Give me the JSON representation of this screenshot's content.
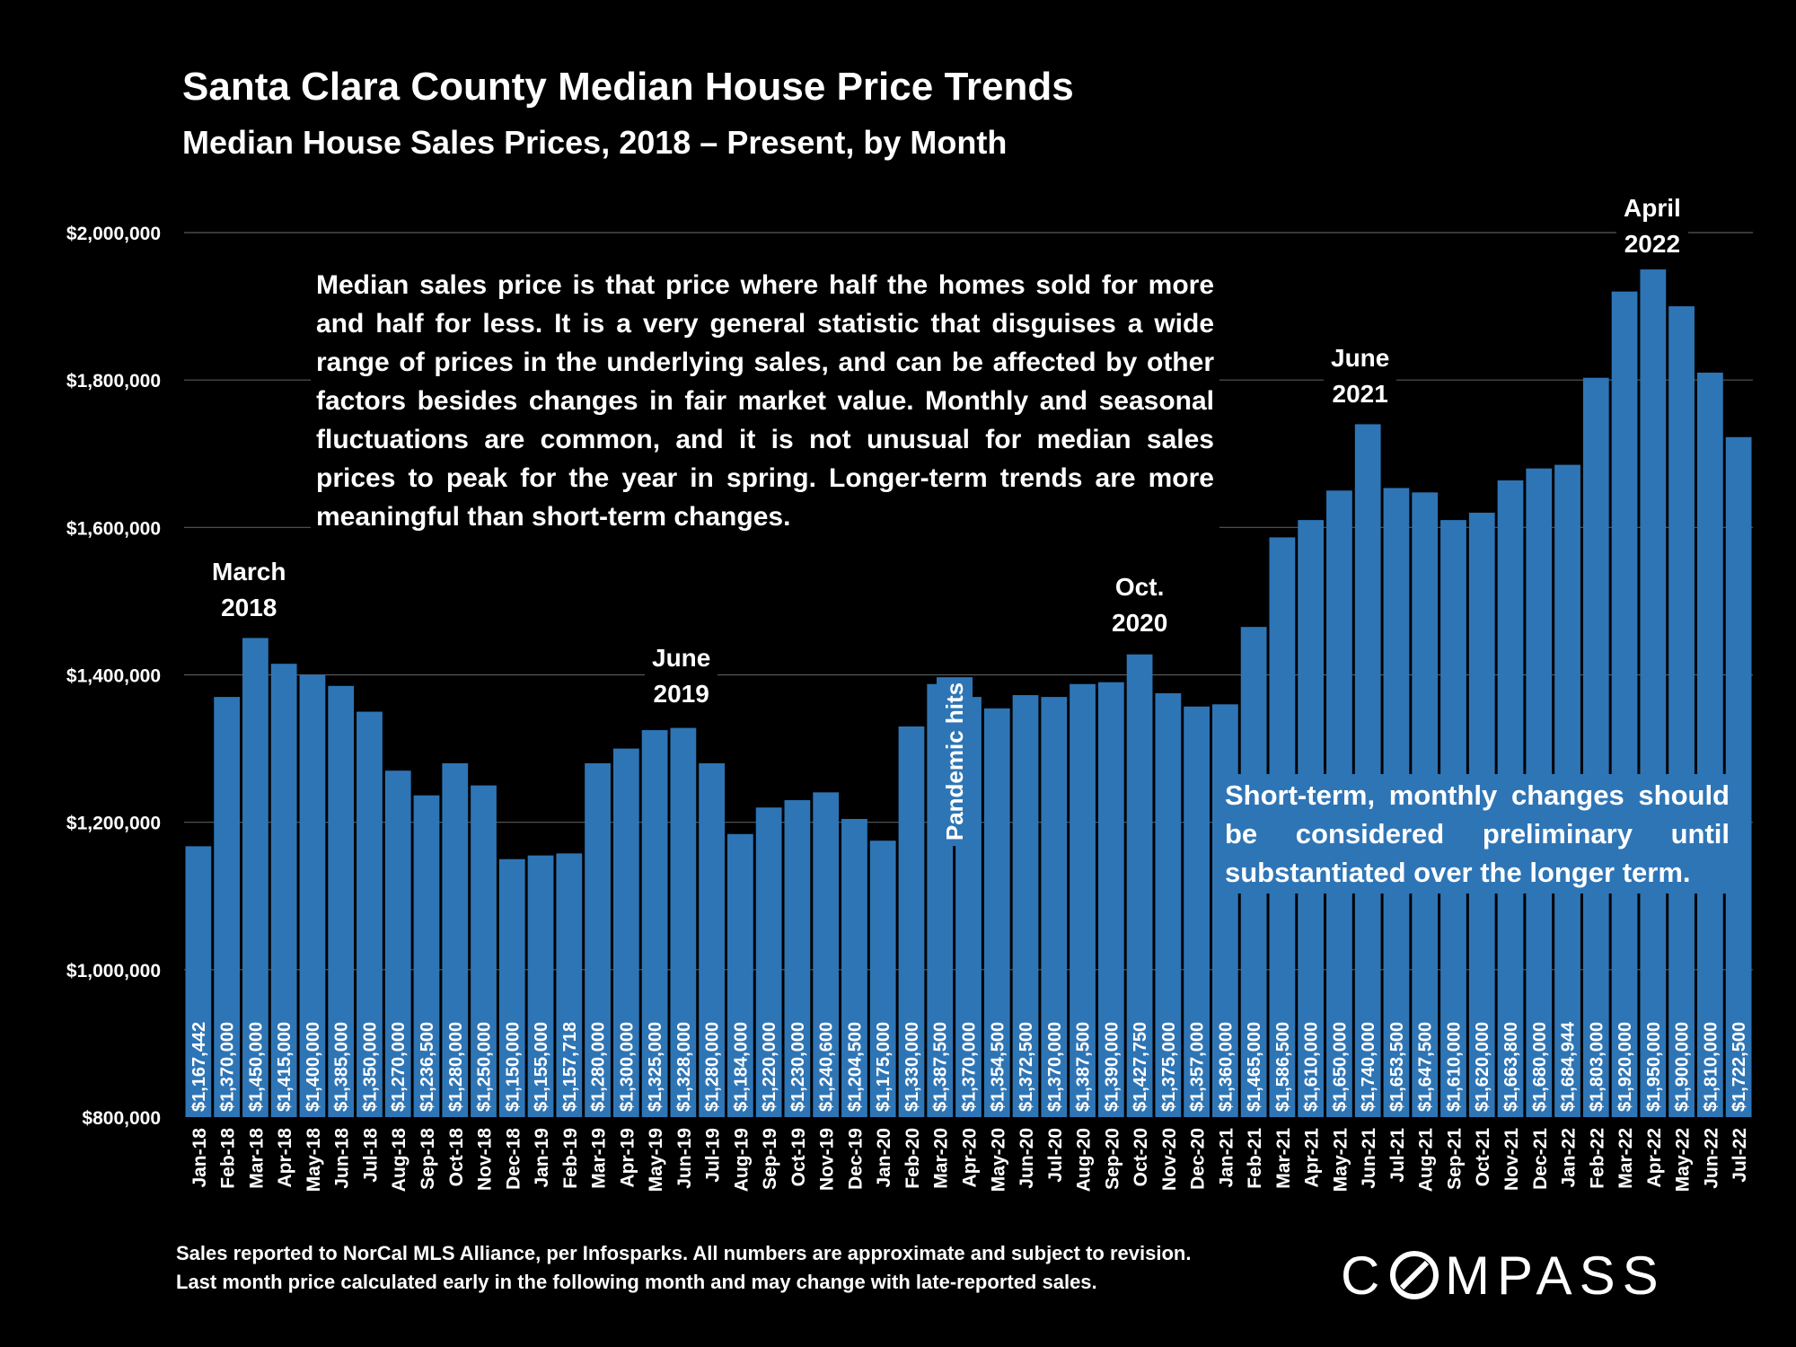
{
  "title": "Santa Clara County Median House Price Trends",
  "subtitle": "Median House Sales Prices, 2018 – Present, by Month",
  "notes": {
    "definition": "Median sales price is that price where half the homes sold for more and half for less. It is a very general statistic that disguises a wide range of prices in the underlying sales, and can be affected by other factors besides changes in fair market value. Monthly and seasonal fluctuations are common, and it is not unusual for median sales prices to peak for the year in spring. Longer-term trends are more meaningful than short-term changes.",
    "short_term": "Short-term, monthly changes should be considered preliminary until substantiated over the longer term.",
    "pandemic": "Pandemic hits"
  },
  "annotations": {
    "march_2018": [
      "March",
      "2018"
    ],
    "june_2019": [
      "June",
      "2019"
    ],
    "oct_2020": [
      "Oct.",
      "2020"
    ],
    "june_2021": [
      "June",
      "2021"
    ],
    "april_2022": [
      "April",
      "2022"
    ]
  },
  "footer": {
    "line1": "Sales reported to NorCal MLS Alliance, per Infosparks. All numbers are approximate and subject to revision.",
    "line2": "Last month price calculated early in the following month and may change with late-reported sales."
  },
  "logo": "COMPASS",
  "colors": {
    "bar": "#2e75b6",
    "background": "#000000",
    "text": "#ffffff",
    "grid": "#595959"
  },
  "chart_data": {
    "type": "bar",
    "title": "Santa Clara County Median House Price Trends",
    "subtitle": "Median House Sales Prices, 2018 – Present, by Month",
    "xlabel": "",
    "ylabel": "",
    "ylim": [
      800000,
      2000000
    ],
    "yticks": [
      800000,
      1000000,
      1200000,
      1400000,
      1600000,
      1800000,
      2000000
    ],
    "ytick_labels": [
      "$800,000",
      "$1,000,000",
      "$1,200,000",
      "$1,400,000",
      "$1,600,000",
      "$1,800,000",
      "$2,000,000"
    ],
    "grid": true,
    "categories": [
      "Jan-18",
      "Feb-18",
      "Mar-18",
      "Apr-18",
      "May-18",
      "Jun-18",
      "Jul-18",
      "Aug-18",
      "Sep-18",
      "Oct-18",
      "Nov-18",
      "Dec-18",
      "Jan-19",
      "Feb-19",
      "Mar-19",
      "Apr-19",
      "May-19",
      "Jun-19",
      "Jul-19",
      "Aug-19",
      "Sep-19",
      "Oct-19",
      "Nov-19",
      "Dec-19",
      "Jan-20",
      "Feb-20",
      "Mar-20",
      "Apr-20",
      "May-20",
      "Jun-20",
      "Jul-20",
      "Aug-20",
      "Sep-20",
      "Oct-20",
      "Nov-20",
      "Dec-20",
      "Jan-21",
      "Feb-21",
      "Mar-21",
      "Apr-21",
      "May-21",
      "Jun-21",
      "Jul-21",
      "Aug-21",
      "Sep-21",
      "Oct-21",
      "Nov-21",
      "Dec-21",
      "Jan-22",
      "Feb-22",
      "Mar-22",
      "Apr-22",
      "May-22",
      "Jun-22",
      "Jul-22"
    ],
    "values": [
      1167442,
      1370000,
      1450000,
      1415000,
      1400000,
      1385000,
      1350000,
      1270000,
      1236500,
      1280000,
      1250000,
      1150000,
      1155000,
      1157718,
      1280000,
      1300000,
      1325000,
      1328000,
      1280000,
      1184000,
      1220000,
      1230000,
      1240600,
      1204500,
      1175000,
      1330000,
      1387500,
      1370000,
      1354500,
      1372500,
      1370000,
      1387500,
      1390000,
      1427750,
      1375000,
      1357000,
      1360000,
      1465000,
      1586500,
      1610000,
      1650000,
      1740000,
      1653500,
      1647500,
      1610000,
      1620000,
      1663800,
      1680000,
      1684944,
      1803000,
      1920000,
      1950000,
      1900000,
      1810000,
      1722500
    ],
    "data_labels": [
      "$1,167,442",
      "$1,370,000",
      "$1,450,000",
      "$1,415,000",
      "$1,400,000",
      "$1,385,000",
      "$1,350,000",
      "$1,270,000",
      "$1,236,500",
      "$1,280,000",
      "$1,250,000",
      "$1,150,000",
      "$1,155,000",
      "$1,157,718",
      "$1,280,000",
      "$1,300,000",
      "$1,325,000",
      "$1,328,000",
      "$1,280,000",
      "$1,184,000",
      "$1,220,000",
      "$1,230,000",
      "$1,240,600",
      "$1,204,500",
      "$1,175,000",
      "$1,330,000",
      "$1,387,500",
      "$1,370,000",
      "$1,354,500",
      "$1,372,500",
      "$1,370,000",
      "$1,387,500",
      "$1,390,000",
      "$1,427,750",
      "$1,375,000",
      "$1,357,000",
      "$1,360,000",
      "$1,465,000",
      "$1,586,500",
      "$1,610,000",
      "$1,650,000",
      "$1,740,000",
      "$1,653,500",
      "$1,647,500",
      "$1,610,000",
      "$1,620,000",
      "$1,663,800",
      "$1,680,000",
      "$1,684,944",
      "$1,803,000",
      "$1,920,000",
      "$1,950,000",
      "$1,900,000",
      "$1,810,000",
      "$1,722,500"
    ]
  }
}
